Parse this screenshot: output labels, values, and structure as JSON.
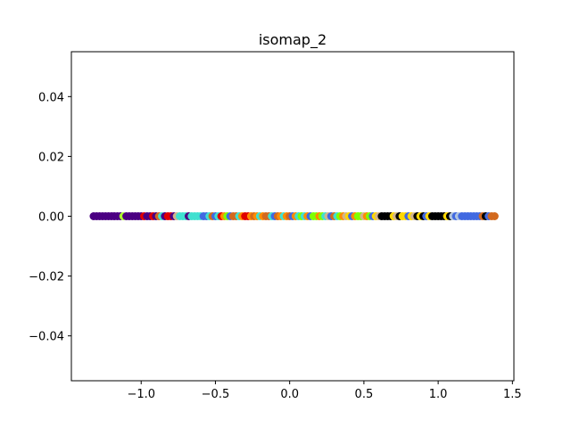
{
  "chart_data": {
    "type": "scatter",
    "title": "isomap_2",
    "xlabel": "",
    "ylabel": "",
    "xlim": [
      -1.47,
      1.51
    ],
    "ylim": [
      -0.055,
      0.055
    ],
    "x_ticks": [
      -1.0,
      -0.5,
      0.0,
      0.5,
      1.0,
      1.5
    ],
    "x_tick_labels": [
      "−1.0",
      "−0.5",
      "0.0",
      "0.5",
      "1.0",
      "1.5"
    ],
    "y_ticks": [
      -0.04,
      -0.02,
      0.0,
      0.02,
      0.04
    ],
    "y_tick_labels": [
      "−0.04",
      "−0.02",
      "0.00",
      "0.02",
      "0.04"
    ],
    "grid": false,
    "legend": "none",
    "points": [
      {
        "x": -1.32,
        "y": 0,
        "color": "#4b0082"
      },
      {
        "x": -1.3,
        "y": 0,
        "color": "#4b0082"
      },
      {
        "x": -1.28,
        "y": 0,
        "color": "#4b0082"
      },
      {
        "x": -1.26,
        "y": 0,
        "color": "#4b0082"
      },
      {
        "x": -1.24,
        "y": 0,
        "color": "#4b0082"
      },
      {
        "x": -1.22,
        "y": 0,
        "color": "#4b0082"
      },
      {
        "x": -1.2,
        "y": 0,
        "color": "#4b0082"
      },
      {
        "x": -1.18,
        "y": 0,
        "color": "#4b0082"
      },
      {
        "x": -1.16,
        "y": 0,
        "color": "#4b0082"
      },
      {
        "x": -1.14,
        "y": 0,
        "color": "#4b0082"
      },
      {
        "x": -1.12,
        "y": 0,
        "color": "#adff2f"
      },
      {
        "x": -1.1,
        "y": 0,
        "color": "#4b0082"
      },
      {
        "x": -1.08,
        "y": 0,
        "color": "#4b0082"
      },
      {
        "x": -1.06,
        "y": 0,
        "color": "#4b0082"
      },
      {
        "x": -1.04,
        "y": 0,
        "color": "#4b0082"
      },
      {
        "x": -1.02,
        "y": 0,
        "color": "#4b0082"
      },
      {
        "x": -1.0,
        "y": 0,
        "color": "#4b0082"
      },
      {
        "x": -0.98,
        "y": 0,
        "color": "#e00000"
      },
      {
        "x": -0.96,
        "y": 0,
        "color": "#4b0082"
      },
      {
        "x": -0.94,
        "y": 0,
        "color": "#4b0082"
      },
      {
        "x": -0.92,
        "y": 0,
        "color": "#e00000"
      },
      {
        "x": -0.9,
        "y": 0,
        "color": "#4b0082"
      },
      {
        "x": -0.88,
        "y": 0,
        "color": "#d2691e"
      },
      {
        "x": -0.86,
        "y": 0,
        "color": "#40e0d0"
      },
      {
        "x": -0.84,
        "y": 0,
        "color": "#4b0082"
      },
      {
        "x": -0.82,
        "y": 0,
        "color": "#e00000"
      },
      {
        "x": -0.8,
        "y": 0,
        "color": "#e00000"
      },
      {
        "x": -0.78,
        "y": 0,
        "color": "#4b0082"
      },
      {
        "x": -0.76,
        "y": 0,
        "color": "#d2b48c"
      },
      {
        "x": -0.74,
        "y": 0,
        "color": "#40e0d0"
      },
      {
        "x": -0.72,
        "y": 0,
        "color": "#40e0d0"
      },
      {
        "x": -0.7,
        "y": 0,
        "color": "#40e0d0"
      },
      {
        "x": -0.68,
        "y": 0,
        "color": "#4b0082"
      },
      {
        "x": -0.66,
        "y": 0,
        "color": "#40e0d0"
      },
      {
        "x": -0.64,
        "y": 0,
        "color": "#40e0d0"
      },
      {
        "x": -0.62,
        "y": 0,
        "color": "#40e0d0"
      },
      {
        "x": -0.6,
        "y": 0,
        "color": "#40e0d0"
      },
      {
        "x": -0.58,
        "y": 0,
        "color": "#4169e1"
      },
      {
        "x": -0.56,
        "y": 0,
        "color": "#4169e1"
      },
      {
        "x": -0.54,
        "y": 0,
        "color": "#40e0d0"
      },
      {
        "x": -0.52,
        "y": 0,
        "color": "#d2691e"
      },
      {
        "x": -0.5,
        "y": 0,
        "color": "#4169e1"
      },
      {
        "x": -0.48,
        "y": 0,
        "color": "#40e0d0"
      },
      {
        "x": -0.46,
        "y": 0,
        "color": "#e00000"
      },
      {
        "x": -0.44,
        "y": 0,
        "color": "#ff8c00"
      },
      {
        "x": -0.42,
        "y": 0,
        "color": "#7fff00"
      },
      {
        "x": -0.4,
        "y": 0,
        "color": "#4169e1"
      },
      {
        "x": -0.38,
        "y": 0,
        "color": "#d2691e"
      },
      {
        "x": -0.36,
        "y": 0,
        "color": "#d2691e"
      },
      {
        "x": -0.34,
        "y": 0,
        "color": "#40e0d0"
      },
      {
        "x": -0.32,
        "y": 0,
        "color": "#ff8c00"
      },
      {
        "x": -0.3,
        "y": 0,
        "color": "#e00000"
      },
      {
        "x": -0.28,
        "y": 0,
        "color": "#e00000"
      },
      {
        "x": -0.26,
        "y": 0,
        "color": "#ff8c00"
      },
      {
        "x": -0.24,
        "y": 0,
        "color": "#d2691e"
      },
      {
        "x": -0.22,
        "y": 0,
        "color": "#ff8c00"
      },
      {
        "x": -0.2,
        "y": 0,
        "color": "#40e0d0"
      },
      {
        "x": -0.18,
        "y": 0,
        "color": "#ff8c00"
      },
      {
        "x": -0.16,
        "y": 0,
        "color": "#d2691e"
      },
      {
        "x": -0.14,
        "y": 0,
        "color": "#d2691e"
      },
      {
        "x": -0.12,
        "y": 0,
        "color": "#40e0d0"
      },
      {
        "x": -0.1,
        "y": 0,
        "color": "#4169e1"
      },
      {
        "x": -0.08,
        "y": 0,
        "color": "#d2691e"
      },
      {
        "x": -0.06,
        "y": 0,
        "color": "#ff8c00"
      },
      {
        "x": -0.04,
        "y": 0,
        "color": "#40e0d0"
      },
      {
        "x": -0.02,
        "y": 0,
        "color": "#ff8c00"
      },
      {
        "x": 0.0,
        "y": 0,
        "color": "#d2691e"
      },
      {
        "x": 0.02,
        "y": 0,
        "color": "#4169e1"
      },
      {
        "x": 0.04,
        "y": 0,
        "color": "#ff8c00"
      },
      {
        "x": 0.06,
        "y": 0,
        "color": "#40e0d0"
      },
      {
        "x": 0.08,
        "y": 0,
        "color": "#7fff00"
      },
      {
        "x": 0.1,
        "y": 0,
        "color": "#40e0d0"
      },
      {
        "x": 0.12,
        "y": 0,
        "color": "#ff8c00"
      },
      {
        "x": 0.14,
        "y": 0,
        "color": "#4169e1"
      },
      {
        "x": 0.16,
        "y": 0,
        "color": "#7fff00"
      },
      {
        "x": 0.18,
        "y": 0,
        "color": "#7fff00"
      },
      {
        "x": 0.2,
        "y": 0,
        "color": "#ff8c00"
      },
      {
        "x": 0.22,
        "y": 0,
        "color": "#7fff00"
      },
      {
        "x": 0.24,
        "y": 0,
        "color": "#40e0d0"
      },
      {
        "x": 0.26,
        "y": 0,
        "color": "#d2b48c"
      },
      {
        "x": 0.28,
        "y": 0,
        "color": "#4169e1"
      },
      {
        "x": 0.3,
        "y": 0,
        "color": "#d2691e"
      },
      {
        "x": 0.32,
        "y": 0,
        "color": "#40e0d0"
      },
      {
        "x": 0.34,
        "y": 0,
        "color": "#7fff00"
      },
      {
        "x": 0.36,
        "y": 0,
        "color": "#ff8c00"
      },
      {
        "x": 0.38,
        "y": 0,
        "color": "#d2b48c"
      },
      {
        "x": 0.4,
        "y": 0,
        "color": "#ffd700"
      },
      {
        "x": 0.42,
        "y": 0,
        "color": "#4169e1"
      },
      {
        "x": 0.44,
        "y": 0,
        "color": "#ff8c00"
      },
      {
        "x": 0.46,
        "y": 0,
        "color": "#7fff00"
      },
      {
        "x": 0.48,
        "y": 0,
        "color": "#7fff00"
      },
      {
        "x": 0.5,
        "y": 0,
        "color": "#d2b48c"
      },
      {
        "x": 0.52,
        "y": 0,
        "color": "#ff8c00"
      },
      {
        "x": 0.54,
        "y": 0,
        "color": "#7fff00"
      },
      {
        "x": 0.56,
        "y": 0,
        "color": "#4169e1"
      },
      {
        "x": 0.58,
        "y": 0,
        "color": "#ffd700"
      },
      {
        "x": 0.6,
        "y": 0,
        "color": "#d2b48c"
      },
      {
        "x": 0.62,
        "y": 0,
        "color": "#000000"
      },
      {
        "x": 0.64,
        "y": 0,
        "color": "#000000"
      },
      {
        "x": 0.66,
        "y": 0,
        "color": "#000000"
      },
      {
        "x": 0.68,
        "y": 0,
        "color": "#000000"
      },
      {
        "x": 0.7,
        "y": 0,
        "color": "#ffd700"
      },
      {
        "x": 0.72,
        "y": 0,
        "color": "#d2b48c"
      },
      {
        "x": 0.74,
        "y": 0,
        "color": "#000000"
      },
      {
        "x": 0.76,
        "y": 0,
        "color": "#ffd700"
      },
      {
        "x": 0.78,
        "y": 0,
        "color": "#ffd700"
      },
      {
        "x": 0.8,
        "y": 0,
        "color": "#4169e1"
      },
      {
        "x": 0.82,
        "y": 0,
        "color": "#ffd700"
      },
      {
        "x": 0.84,
        "y": 0,
        "color": "#d2b48c"
      },
      {
        "x": 0.86,
        "y": 0,
        "color": "#000000"
      },
      {
        "x": 0.88,
        "y": 0,
        "color": "#ffd700"
      },
      {
        "x": 0.9,
        "y": 0,
        "color": "#000000"
      },
      {
        "x": 0.92,
        "y": 0,
        "color": "#4169e1"
      },
      {
        "x": 0.94,
        "y": 0,
        "color": "#ffd700"
      },
      {
        "x": 0.96,
        "y": 0,
        "color": "#000000"
      },
      {
        "x": 0.98,
        "y": 0,
        "color": "#000000"
      },
      {
        "x": 1.0,
        "y": 0,
        "color": "#000000"
      },
      {
        "x": 1.02,
        "y": 0,
        "color": "#000000"
      },
      {
        "x": 1.04,
        "y": 0,
        "color": "#000000"
      },
      {
        "x": 1.06,
        "y": 0,
        "color": "#ffd700"
      },
      {
        "x": 1.08,
        "y": 0,
        "color": "#000000"
      },
      {
        "x": 1.1,
        "y": 0,
        "color": "#b0c4de"
      },
      {
        "x": 1.12,
        "y": 0,
        "color": "#4169e1"
      },
      {
        "x": 1.14,
        "y": 0,
        "color": "#b0c4de"
      },
      {
        "x": 1.16,
        "y": 0,
        "color": "#4169e1"
      },
      {
        "x": 1.18,
        "y": 0,
        "color": "#4169e1"
      },
      {
        "x": 1.2,
        "y": 0,
        "color": "#4169e1"
      },
      {
        "x": 1.22,
        "y": 0,
        "color": "#4169e1"
      },
      {
        "x": 1.24,
        "y": 0,
        "color": "#4169e1"
      },
      {
        "x": 1.26,
        "y": 0,
        "color": "#4169e1"
      },
      {
        "x": 1.28,
        "y": 0,
        "color": "#4169e1"
      },
      {
        "x": 1.3,
        "y": 0,
        "color": "#d2691e"
      },
      {
        "x": 1.32,
        "y": 0,
        "color": "#000000"
      },
      {
        "x": 1.34,
        "y": 0,
        "color": "#4169e1"
      },
      {
        "x": 1.36,
        "y": 0,
        "color": "#d2691e"
      },
      {
        "x": 1.38,
        "y": 0,
        "color": "#d2691e"
      }
    ]
  }
}
